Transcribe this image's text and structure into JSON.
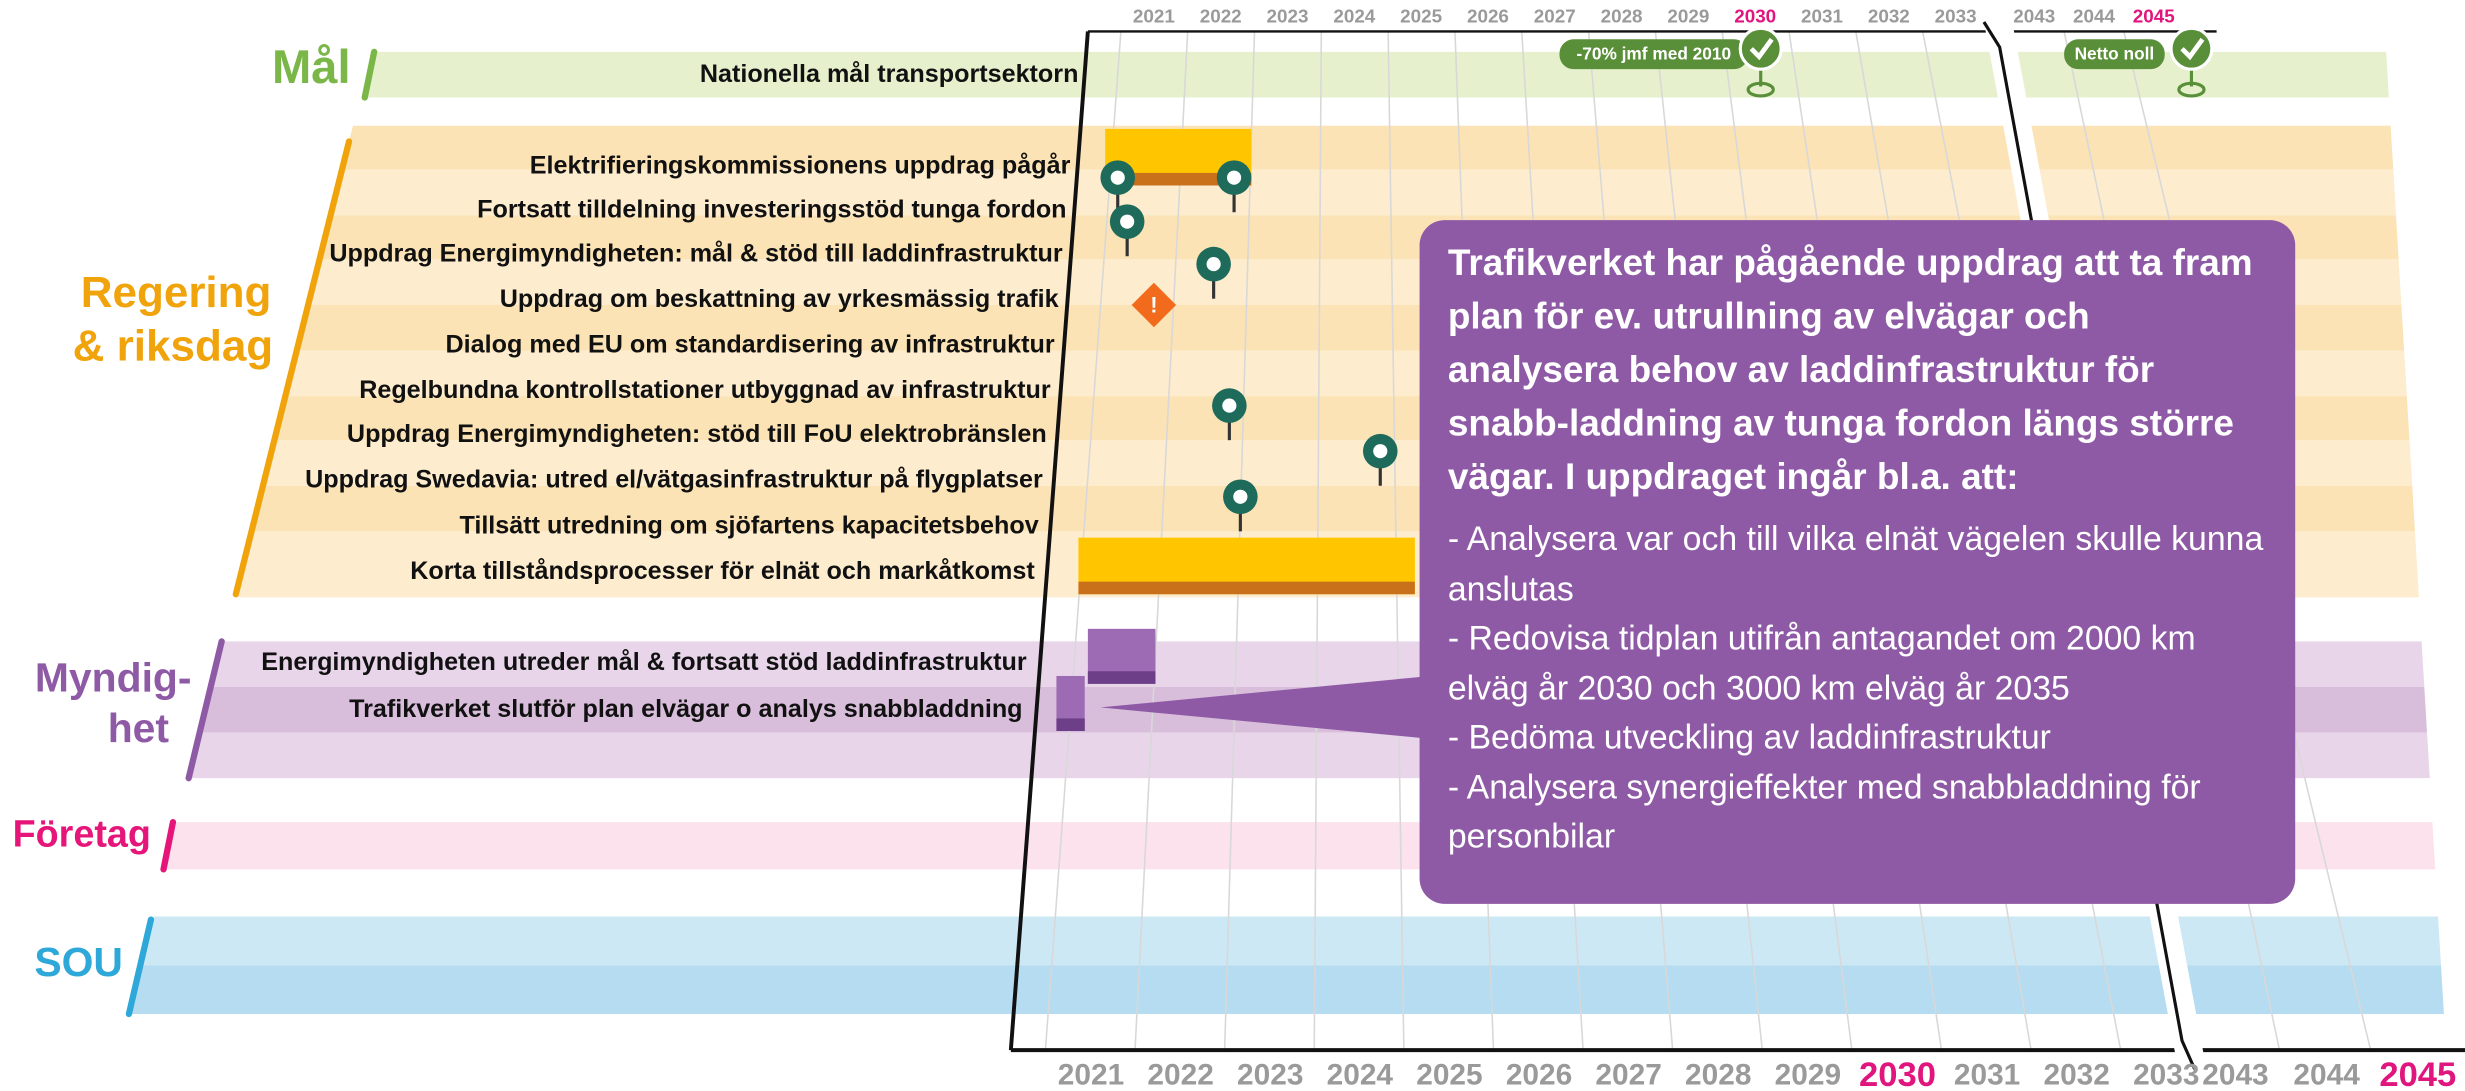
{
  "top_years": [
    "2021",
    "2022",
    "2023",
    "2024",
    "2025",
    "2026",
    "2027",
    "2028",
    "2029",
    "2030",
    "2031",
    "2032",
    "2033",
    "2043",
    "2044",
    "2045"
  ],
  "bottom_years": [
    "2021",
    "2022",
    "2023",
    "2024",
    "2025",
    "2026",
    "2027",
    "2028",
    "2029",
    "2030",
    "2031",
    "2032",
    "2033",
    "2043",
    "2044",
    "2045"
  ],
  "groups": [
    {
      "label": [
        "Mål"
      ],
      "rows": [
        "Nationella mål transportsektorn"
      ]
    },
    {
      "label": [
        "Regering",
        "& riksdag"
      ],
      "rows": [
        "Elektrifieringskommissionens uppdrag pågår",
        "Fortsatt tilldelning investeringsstöd tunga fordon",
        "Uppdrag Energimyndigheten: mål & stöd till laddinfrastruktur",
        "Uppdrag om beskattning av yrkesmässig trafik",
        "Dialog med EU om standardisering av infrastruktur",
        "Regelbundna kontrollstationer utbyggnad av infrastruktur",
        "Uppdrag Energimyndigheten: stöd till FoU elektrobränslen",
        "Uppdrag Swedavia: utred el/vätgasinfrastruktur på flygplatser",
        "Tillsätt utredning om sjöfartens kapacitetsbehov",
        "Korta tillståndsprocesser för elnät och markåtkomst"
      ]
    },
    {
      "label": [
        "Myndig-",
        "het"
      ],
      "rows": [
        "Energimyndigheten utreder mål & fortsatt stöd laddinfrastruktur",
        "Trafikverket slutför plan elvägar o analys snabbladdning"
      ]
    },
    {
      "label": [
        "Företag"
      ],
      "rows": []
    },
    {
      "label": [
        "SOU"
      ],
      "rows": []
    }
  ],
  "milestones": [
    "-70% jmf med 2010",
    "Netto noll"
  ],
  "callout": {
    "title": "Trafikverket har pågående uppdrag att ta fram plan för ev. utrullning av elvägar och analysera behov av laddinfrastruktur för snabb-laddning av tunga fordon längs större vägar. I uppdraget ingår bl.a. att:",
    "bullets": [
      "- Analysera var och till vilka elnät vägelen skulle kunna anslutas",
      "- Redovisa tidplan utifrån antagandet om 2000 km elväg år 2030 och 3000 km elväg år 2035",
      "- Bedöma utveckling av laddinfrastruktur",
      "- Analysera synergieffekter med snabbladdning för personbilar"
    ]
  }
}
